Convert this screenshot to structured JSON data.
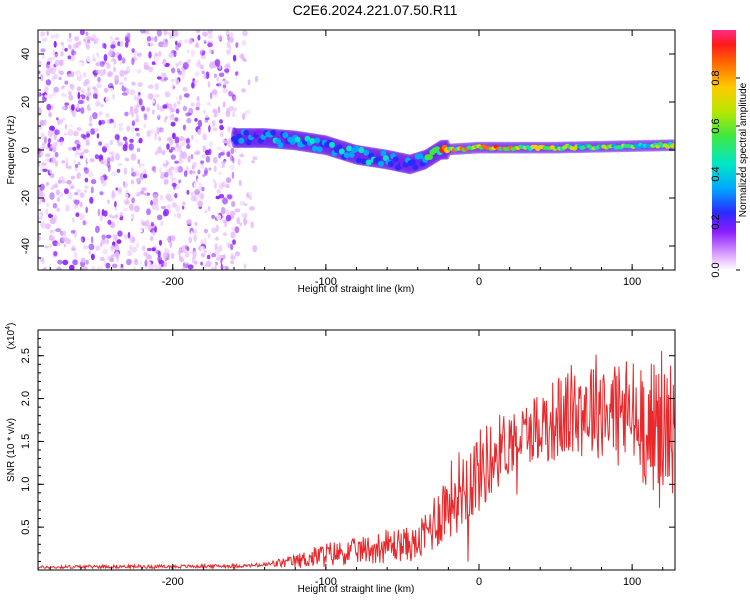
{
  "title": "C2E6.2024.221.07.50.R11",
  "chart_data": [
    {
      "type": "heatmap",
      "xlabel": "Height of straight line (km)",
      "ylabel": "Frequency (Hz)",
      "xlim": [
        -288,
        128
      ],
      "ylim": [
        -50,
        50
      ],
      "xticks": [
        -200,
        -100,
        0,
        100
      ],
      "yticks": [
        -40,
        -20,
        0,
        20,
        40
      ],
      "colorbar": {
        "label": "Normalized spectral amplitude",
        "range": [
          0,
          1
        ],
        "ticks": [
          0.0,
          0.2,
          0.4,
          0.6,
          0.8
        ]
      },
      "regions": [
        {
          "name": "broadband noise",
          "x_range": [
            -288,
            -158
          ],
          "y_range": [
            -50,
            50
          ],
          "amplitude": 0.1
        },
        {
          "name": "scattered faint noise",
          "x_range": [
            -158,
            -145
          ],
          "y_range": [
            -50,
            50
          ],
          "amplitude": 0.05
        },
        {
          "name": "signal band",
          "x": [
            -160,
            -140,
            -120,
            -100,
            -80,
            -60,
            -45,
            -35,
            -25,
            0,
            50,
            128
          ],
          "freq": [
            5,
            5,
            4,
            2,
            -2,
            -4,
            -6,
            -4,
            0,
            1,
            1,
            2
          ],
          "amplitude": [
            0.3,
            0.4,
            0.4,
            0.4,
            0.4,
            0.4,
            0.35,
            0.45,
            0.8,
            0.85,
            0.7,
            0.6
          ]
        }
      ]
    },
    {
      "type": "line",
      "xlabel": "Height of straight line (km)",
      "ylabel": "SNR (10 * v/v)",
      "y_scale_label": "(x10",
      "y_scale_exp": "4",
      "xlim": [
        -288,
        128
      ],
      "ylim": [
        0,
        2.8
      ],
      "xticks": [
        -200,
        -100,
        0,
        100
      ],
      "yticks": [
        0.5,
        1.0,
        1.5,
        2.0,
        2.5
      ],
      "color": "#e8282b",
      "x": [
        -288,
        -250,
        -200,
        -150,
        -140,
        -120,
        -100,
        -80,
        -60,
        -50,
        -40,
        -30,
        -20,
        -10,
        0,
        10,
        20,
        30,
        40,
        50,
        60,
        70,
        80,
        90,
        100,
        110,
        120,
        128
      ],
      "y": [
        0.03,
        0.04,
        0.04,
        0.05,
        0.06,
        0.1,
        0.18,
        0.22,
        0.28,
        0.3,
        0.3,
        0.55,
        0.8,
        1.0,
        1.15,
        1.35,
        1.5,
        1.6,
        1.7,
        1.75,
        1.85,
        1.9,
        1.95,
        1.85,
        1.8,
        1.7,
        1.65,
        1.7
      ],
      "spread": [
        0.02,
        0.02,
        0.02,
        0.02,
        0.03,
        0.08,
        0.15,
        0.15,
        0.2,
        0.2,
        0.2,
        0.35,
        0.45,
        0.5,
        0.5,
        0.45,
        0.4,
        0.35,
        0.45,
        0.5,
        0.55,
        0.6,
        0.65,
        0.7,
        0.7,
        0.75,
        0.8,
        0.8
      ]
    }
  ]
}
